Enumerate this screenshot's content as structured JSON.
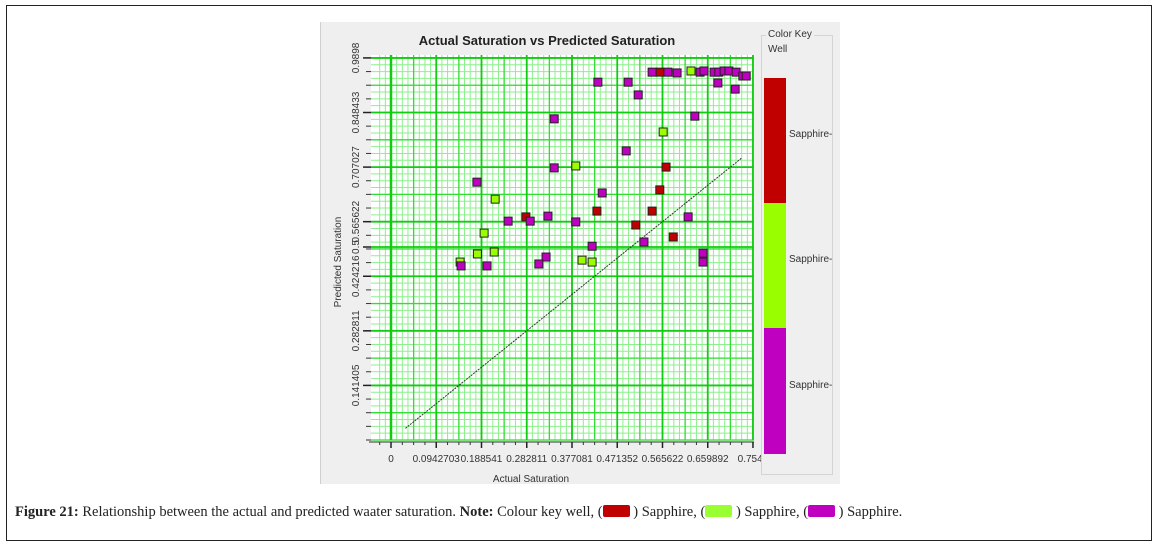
{
  "chart_data": {
    "type": "scatter",
    "title": "Actual Saturation vs Predicted Saturation",
    "xlabel": "Actual Saturation",
    "ylabel": "Predicted Saturation",
    "xlim": [
      0,
      0.7541
    ],
    "ylim": [
      0,
      0.98982
    ],
    "x_ticks": [
      "0",
      "0.0942703",
      "0.188541",
      "0.282811",
      "0.377081",
      "0.471352",
      "0.565622",
      "0.659892",
      "0.7541"
    ],
    "x_tick_values": [
      0,
      0.0942703,
      0.188541,
      0.282811,
      0.377081,
      0.471352,
      0.565622,
      0.659892,
      0.7541
    ],
    "y_ticks": [
      "0.141405",
      "0.282811",
      "0.424216",
      "0.5",
      "0.565622",
      "0.707027",
      "0.848433",
      "0.9898"
    ],
    "y_tick_values": [
      0.141405,
      0.282811,
      0.424216,
      0.5,
      0.565622,
      0.707027,
      0.848433,
      0.98982
    ],
    "grid": true,
    "reference_line": {
      "x": [
        0.03,
        0.73
      ],
      "y": [
        0.03,
        0.73
      ]
    },
    "legend": {
      "title": "Color Key",
      "subtitle": "Well",
      "placement": "right",
      "entries": [
        {
          "label": "Sapphire-",
          "color": "#c00000"
        },
        {
          "label": "Sapphire-",
          "color": "#99ff00"
        },
        {
          "label": "Sapphire-",
          "color": "#c000c0"
        }
      ]
    },
    "series": [
      {
        "name": "Sapphire- (red)",
        "color": "#c00000",
        "points": [
          [
            0.56,
            0.953
          ],
          [
            0.573,
            0.707
          ],
          [
            0.56,
            0.648
          ],
          [
            0.544,
            0.593
          ],
          [
            0.429,
            0.593
          ],
          [
            0.281,
            0.578
          ],
          [
            0.51,
            0.557
          ],
          [
            0.588,
            0.526
          ]
        ]
      },
      {
        "name": "Sapphire- (green)",
        "color": "#99ff00",
        "points": [
          [
            0.625,
            0.956
          ],
          [
            0.567,
            0.798
          ],
          [
            0.385,
            0.71
          ],
          [
            0.217,
            0.624
          ],
          [
            0.194,
            0.536
          ],
          [
            0.18,
            0.482
          ],
          [
            0.215,
            0.487
          ],
          [
            0.398,
            0.466
          ],
          [
            0.419,
            0.461
          ],
          [
            0.144,
            0.461
          ]
        ]
      },
      {
        "name": "Sapphire- (magenta)",
        "color": "#c000c0",
        "points": [
          [
            0.431,
            0.927
          ],
          [
            0.494,
            0.927
          ],
          [
            0.544,
            0.953
          ],
          [
            0.577,
            0.953
          ],
          [
            0.596,
            0.951
          ],
          [
            0.644,
            0.953
          ],
          [
            0.652,
            0.956
          ],
          [
            0.673,
            0.953
          ],
          [
            0.683,
            0.953
          ],
          [
            0.694,
            0.956
          ],
          [
            0.704,
            0.956
          ],
          [
            0.719,
            0.953
          ],
          [
            0.733,
            0.943
          ],
          [
            0.74,
            0.943
          ],
          [
            0.681,
            0.925
          ],
          [
            0.717,
            0.909
          ],
          [
            0.515,
            0.894
          ],
          [
            0.34,
            0.832
          ],
          [
            0.633,
            0.839
          ],
          [
            0.49,
            0.749
          ],
          [
            0.34,
            0.705
          ],
          [
            0.179,
            0.668
          ],
          [
            0.44,
            0.64
          ],
          [
            0.327,
            0.58
          ],
          [
            0.29,
            0.567
          ],
          [
            0.619,
            0.578
          ],
          [
            0.244,
            0.567
          ],
          [
            0.385,
            0.565
          ],
          [
            0.527,
            0.513
          ],
          [
            0.419,
            0.502
          ],
          [
            0.65,
            0.484
          ],
          [
            0.323,
            0.474
          ],
          [
            0.146,
            0.451
          ],
          [
            0.2,
            0.451
          ],
          [
            0.308,
            0.456
          ],
          [
            0.65,
            0.461
          ]
        ]
      }
    ]
  },
  "caption": {
    "label": "Figure 21:",
    "text": " Relationship between the actual and predicted waater saturation. ",
    "note_label": "Note:",
    "note_text": " Colour key well, (",
    "items": [
      " ) Sapphire, (",
      " ) Sapphire, (",
      " ) Sapphire."
    ],
    "swatch_colors": [
      "#c00000",
      "#99ff33",
      "#c000c0"
    ]
  }
}
